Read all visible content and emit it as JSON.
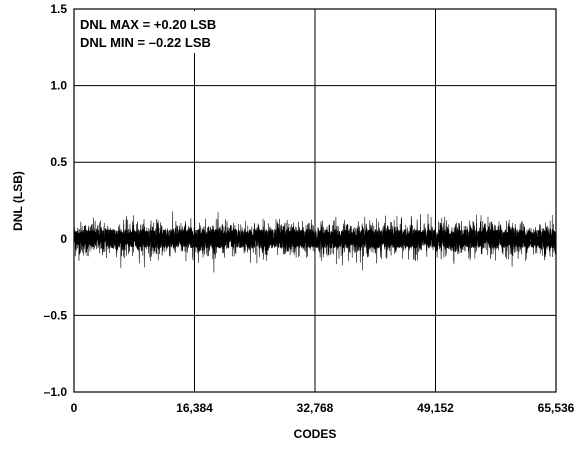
{
  "chart_data": {
    "type": "line",
    "title": "",
    "xlabel": "CODES",
    "ylabel": "DNL (LSB)",
    "xlim": [
      0,
      65536
    ],
    "ylim": [
      -1.0,
      1.5
    ],
    "x_ticks": [
      0,
      16384,
      32768,
      49152,
      65536
    ],
    "x_tick_labels": [
      "0",
      "16,384",
      "32,768",
      "49,152",
      "65,536"
    ],
    "y_ticks": [
      -1.0,
      -0.5,
      0,
      0.5,
      1.0,
      1.5
    ],
    "y_tick_labels": [
      "–1.0",
      "–0.5",
      "0",
      "0.5",
      "1.0",
      "1.5"
    ],
    "grid": true,
    "annotations": [
      "DNL MAX = +0.20 LSB",
      "DNL MIN = –0.22 LSB"
    ],
    "dnl_max": 0.2,
    "dnl_min": -0.22,
    "series_color": "#000000",
    "grid_color": "#000000"
  }
}
